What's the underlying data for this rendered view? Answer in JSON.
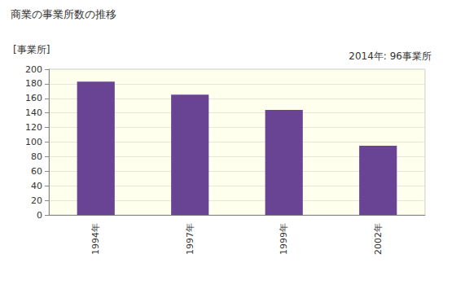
{
  "chart_data": {
    "type": "bar",
    "title": "商業の事業所数の推移",
    "y_label": "[事業所]",
    "annotation": "2014年: 96事業所",
    "categories": [
      "1994年",
      "1997年",
      "1999年",
      "2002年"
    ],
    "values": [
      183,
      165,
      144,
      95
    ],
    "color": "#6a4494",
    "ylim": [
      0,
      200
    ],
    "yticks": [
      0,
      20,
      40,
      60,
      80,
      100,
      120,
      140,
      160,
      180,
      200
    ],
    "grid": true
  }
}
